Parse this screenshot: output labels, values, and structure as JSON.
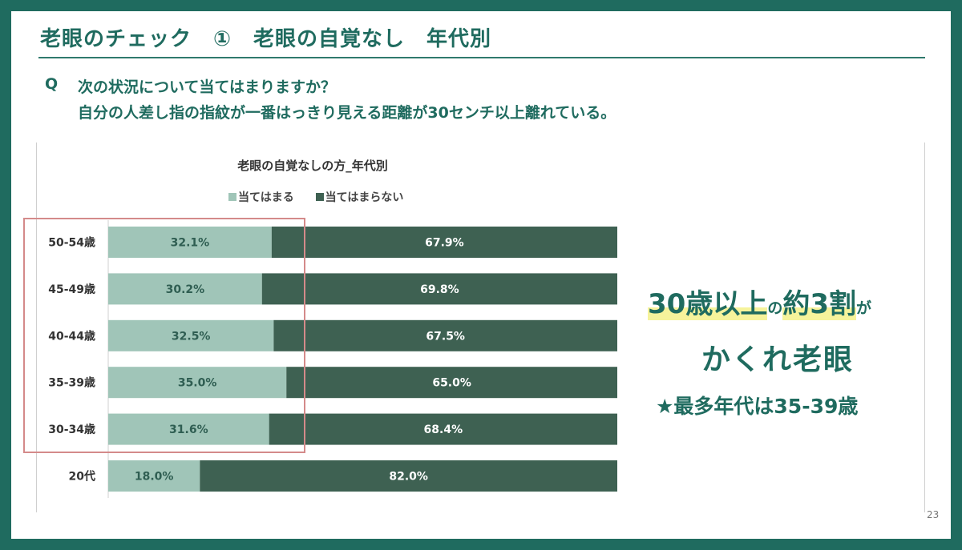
{
  "header": {
    "title": "老眼のチェック　①　老眼の自覚なし　年代別"
  },
  "question": {
    "label": "Q",
    "line1": "次の状況について当てはまりますか？",
    "line2": "自分の人差し指の指紋が一番はっきり見える距離が30センチ以上離れている。"
  },
  "chart_data": {
    "type": "bar",
    "orientation": "horizontal",
    "stacked": true,
    "title": "老眼の自覚なしの方_年代別",
    "categories": [
      "50-54歳",
      "45-49歳",
      "40-44歳",
      "35-39歳",
      "30-34歳",
      "20代"
    ],
    "series": [
      {
        "name": "当てはまる",
        "color": "#a0c5b8",
        "values": [
          32.1,
          30.2,
          32.5,
          35.0,
          31.6,
          18.0
        ],
        "labels": [
          "32.1%",
          "30.2%",
          "32.5%",
          "35.0%",
          "31.6%",
          "18.0%"
        ]
      },
      {
        "name": "当てはまらない",
        "color": "#3e6152",
        "values": [
          67.9,
          69.8,
          67.5,
          65.0,
          68.4,
          82.0
        ],
        "labels": [
          "67.9%",
          "69.8%",
          "67.5%",
          "65.0%",
          "68.4%",
          "82.0%"
        ]
      }
    ],
    "xlim": [
      0,
      100
    ],
    "legend_position": "top",
    "grid": false
  },
  "callout": {
    "part1": "30歳以上",
    "part2": "の",
    "part3": "約3割",
    "part4": "が",
    "line2": "かくれ老眼",
    "line3": "★最多年代は35-39歳"
  },
  "page_number": "23"
}
